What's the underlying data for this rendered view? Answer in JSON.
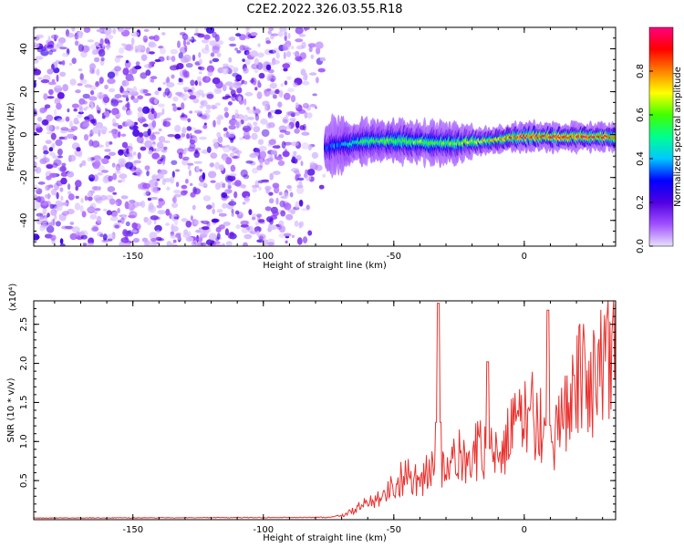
{
  "title": "C2E2.2022.326.03.55.R18",
  "chart_data": [
    {
      "type": "heatmap",
      "title": "C2E2.2022.326.03.55.R18",
      "xlabel": "Height of straight line (km)",
      "ylabel": "Frequency (Hz)",
      "xlim": [
        -188,
        35
      ],
      "ylim": [
        -52,
        50
      ],
      "xticks": [
        -150,
        -100,
        -50,
        0
      ],
      "yticks": [
        -40,
        -20,
        0,
        20,
        40
      ],
      "colorbar": {
        "label": "Normalized spectral amplitude",
        "range": [
          0,
          1
        ],
        "ticks": [
          "0.0",
          "0.2",
          "0.4",
          "0.6",
          "0.8"
        ],
        "colors": [
          "#e8e0ff",
          "#a050ff",
          "#5000e0",
          "#0000ff",
          "#00c8ff",
          "#00ff90",
          "#40ff00",
          "#ffff00",
          "#ff8000",
          "#ff0000",
          "#ff0080"
        ]
      },
      "noise_region_x": [
        -188,
        -76
      ],
      "signal_band": {
        "x": [
          -76,
          -60,
          -45,
          -30,
          -15,
          0,
          15,
          35
        ],
        "center_frequency": [
          -6,
          -3,
          -3,
          -4,
          -3,
          -1,
          -1,
          -1
        ],
        "half_width": [
          4,
          3,
          3,
          3,
          2,
          2,
          2,
          2
        ],
        "peak_amplitude": [
          0.3,
          0.55,
          0.6,
          0.6,
          0.7,
          0.9,
          0.9,
          0.85
        ]
      }
    },
    {
      "type": "line",
      "xlabel": "Height of straight line (km)",
      "ylabel": "SNR (10 * v/v)",
      "y_multiplier_label": "(x10⁴)",
      "xlim": [
        -188,
        35
      ],
      "ylim": [
        0,
        2.8
      ],
      "xticks": [
        -150,
        -100,
        -50,
        0
      ],
      "yticks": [
        "0.5",
        "1.0",
        "1.5",
        "2.0",
        "2.5"
      ],
      "series": [
        {
          "color": "#e8312e",
          "x": [
            -188,
            -75,
            -68,
            -60,
            -50,
            -45,
            -40,
            -35,
            -33,
            -30,
            -25,
            -20,
            -15,
            -14,
            -10,
            -5,
            0,
            5,
            9,
            10,
            15,
            20,
            25,
            30,
            35
          ],
          "y": [
            0.02,
            0.03,
            0.07,
            0.22,
            0.42,
            0.6,
            0.5,
            0.65,
            2.77,
            0.6,
            0.8,
            0.85,
            0.9,
            2.02,
            0.95,
            1.1,
            1.3,
            1.4,
            2.68,
            0.6,
            1.55,
            1.7,
            1.85,
            1.95,
            1.97
          ]
        }
      ]
    }
  ]
}
